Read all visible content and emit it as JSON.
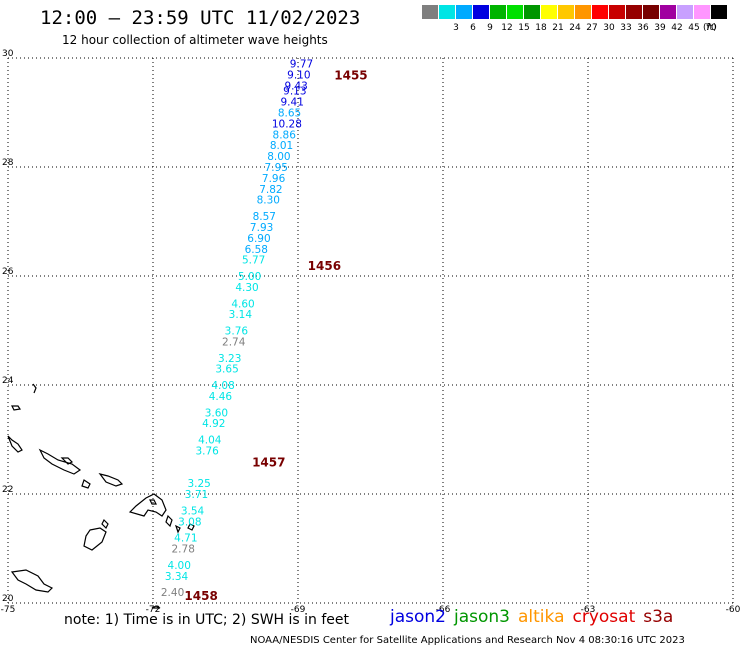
{
  "header": {
    "title": "12:00 — 23:59 UTC 11/02/2023",
    "subtitle": "12 hour collection of altimeter wave heights"
  },
  "footer": {
    "note": "note: 1) Time is in UTC; 2) SWH is in feet",
    "credit": "NOAA/NESDIS Center for Satellite Applications and Research   Nov  4 08:30:16 UTC 2023"
  },
  "legend": {
    "unit": "(ft)",
    "bins": [
      {
        "label": "",
        "color": "#7f7f7f"
      },
      {
        "label": "3",
        "color": "#00e5e5"
      },
      {
        "label": "6",
        "color": "#00aaff"
      },
      {
        "label": "9",
        "color": "#0000e0"
      },
      {
        "label": "12",
        "color": "#00b400"
      },
      {
        "label": "15",
        "color": "#00e000"
      },
      {
        "label": "18",
        "color": "#009600"
      },
      {
        "label": "21",
        "color": "#ffff00"
      },
      {
        "label": "24",
        "color": "#ffc800"
      },
      {
        "label": "27",
        "color": "#ff9600"
      },
      {
        "label": "30",
        "color": "#ff0000"
      },
      {
        "label": "33",
        "color": "#c80000"
      },
      {
        "label": "36",
        "color": "#960000"
      },
      {
        "label": "39",
        "color": "#780000"
      },
      {
        "label": "42",
        "color": "#a000a0"
      },
      {
        "label": "45",
        "color": "#c8a0ff"
      },
      {
        "label": "70",
        "color": "#ff96ff"
      },
      {
        "label": "",
        "color": "#000000"
      }
    ]
  },
  "missions": [
    {
      "name": "jason2",
      "color": "#0000e0"
    },
    {
      "name": "jason3",
      "color": "#009600"
    },
    {
      "name": "altika",
      "color": "#ff9600"
    },
    {
      "name": "cryosat",
      "color": "#e00000"
    },
    {
      "name": "s3a",
      "color": "#960000"
    }
  ],
  "map": {
    "lon_range": [
      -75,
      -60
    ],
    "lat_range": [
      20,
      30
    ],
    "lon_ticks": [
      "-75",
      "-72",
      "-69",
      "-66",
      "-63",
      "-60"
    ],
    "lat_ticks": [
      "30",
      "28",
      "26",
      "24",
      "22",
      "20"
    ],
    "grid": true
  },
  "track_times": [
    {
      "label": "1455",
      "lat": 29.7,
      "lon": -68.25
    },
    {
      "label": "1456",
      "lat": 26.2,
      "lon": -68.8
    },
    {
      "label": "1457",
      "lat": 22.6,
      "lon": -69.95
    },
    {
      "label": "1458",
      "lat": 20.15,
      "lon": -71.35
    }
  ],
  "observations": [
    {
      "lat": 29.9,
      "swh": "9.77",
      "color": "#0000e0"
    },
    {
      "lat": 29.7,
      "swh": "9.10",
      "color": "#0000e0"
    },
    {
      "lat": 29.5,
      "swh": "9.43",
      "color": "#0000e0"
    },
    {
      "lat": 29.4,
      "swh": "9.13",
      "color": "#0000e0"
    },
    {
      "lat": 29.2,
      "swh": "9.41",
      "color": "#0000e0"
    },
    {
      "lat": 29.0,
      "swh": "8.65",
      "color": "#00aaff"
    },
    {
      "lat": 28.8,
      "swh": "10.28",
      "color": "#0000e0"
    },
    {
      "lat": 28.6,
      "swh": "8.86",
      "color": "#00aaff"
    },
    {
      "lat": 28.4,
      "swh": "8.01",
      "color": "#00aaff"
    },
    {
      "lat": 28.2,
      "swh": "8.00",
      "color": "#00aaff"
    },
    {
      "lat": 28.0,
      "swh": "7.95",
      "color": "#00aaff"
    },
    {
      "lat": 27.8,
      "swh": "7.96",
      "color": "#00aaff"
    },
    {
      "lat": 27.6,
      "swh": "7.82",
      "color": "#00aaff"
    },
    {
      "lat": 27.4,
      "swh": "8.30",
      "color": "#00aaff"
    },
    {
      "lat": 27.1,
      "swh": "8.57",
      "color": "#00aaff"
    },
    {
      "lat": 26.9,
      "swh": "7.93",
      "color": "#00aaff"
    },
    {
      "lat": 26.7,
      "swh": "6.90",
      "color": "#00aaff"
    },
    {
      "lat": 26.5,
      "swh": "6.58",
      "color": "#00aaff"
    },
    {
      "lat": 26.3,
      "swh": "5.77",
      "color": "#00e5e5"
    },
    {
      "lat": 26.0,
      "swh": "5.00",
      "color": "#00e5e5"
    },
    {
      "lat": 25.8,
      "swh": "4.30",
      "color": "#00e5e5"
    },
    {
      "lat": 25.5,
      "swh": "4.60",
      "color": "#00e5e5"
    },
    {
      "lat": 25.3,
      "swh": "3.14",
      "color": "#00e5e5"
    },
    {
      "lat": 25.0,
      "swh": "3.76",
      "color": "#00e5e5"
    },
    {
      "lat": 24.8,
      "swh": "2.74",
      "color": "#7f7f7f"
    },
    {
      "lat": 24.5,
      "swh": "3.23",
      "color": "#00e5e5"
    },
    {
      "lat": 24.3,
      "swh": "3.65",
      "color": "#00e5e5"
    },
    {
      "lat": 24.0,
      "swh": "4.08",
      "color": "#00e5e5"
    },
    {
      "lat": 23.8,
      "swh": "4.46",
      "color": "#00e5e5"
    },
    {
      "lat": 23.5,
      "swh": "3.60",
      "color": "#00e5e5"
    },
    {
      "lat": 23.3,
      "swh": "4.92",
      "color": "#00e5e5"
    },
    {
      "lat": 23.0,
      "swh": "4.04",
      "color": "#00e5e5"
    },
    {
      "lat": 22.8,
      "swh": "3.76",
      "color": "#00e5e5"
    },
    {
      "lat": 22.2,
      "swh": "3.25",
      "color": "#00e5e5"
    },
    {
      "lat": 22.0,
      "swh": "3.71",
      "color": "#00e5e5"
    },
    {
      "lat": 21.7,
      "swh": "3.54",
      "color": "#00e5e5"
    },
    {
      "lat": 21.5,
      "swh": "3.08",
      "color": "#00e5e5"
    },
    {
      "lat": 21.2,
      "swh": "4.71",
      "color": "#00e5e5"
    },
    {
      "lat": 21.0,
      "swh": "2.78",
      "color": "#7f7f7f"
    },
    {
      "lat": 20.7,
      "swh": "4.00",
      "color": "#00e5e5"
    },
    {
      "lat": 20.5,
      "swh": "3.34",
      "color": "#00e5e5"
    },
    {
      "lat": 20.2,
      "swh": "2.40",
      "color": "#7f7f7f"
    }
  ]
}
